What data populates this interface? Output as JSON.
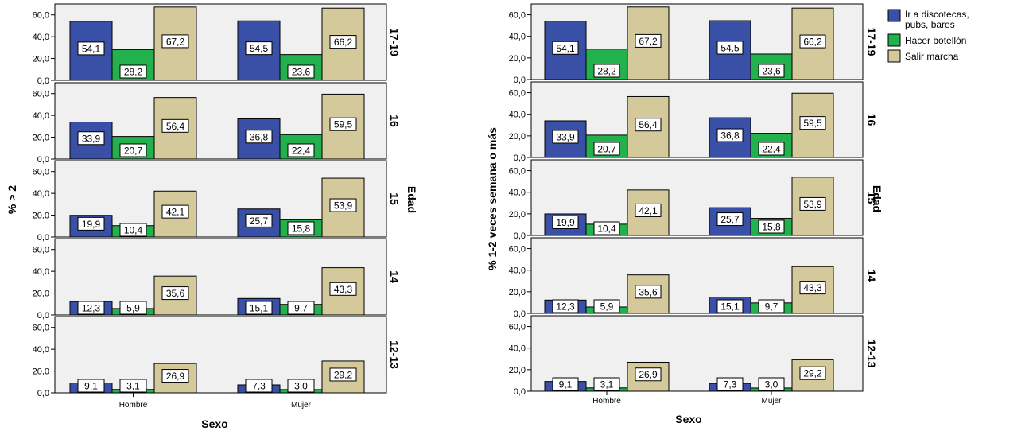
{
  "chart_data": [
    {
      "type": "bar",
      "xlabel": "Sexo",
      "ylabel": "% > 2",
      "facet_label": "Edad",
      "categories": [
        "Hombre",
        "Mujer"
      ],
      "ylim": [
        0,
        70
      ],
      "yticks": [
        "0,0",
        "20,0",
        "40,0",
        "60,0"
      ],
      "grid": false,
      "panels": [
        {
          "label": "17-19",
          "series": [
            {
              "name": "Ir a discotecas, pubs, bares",
              "values": [
                54.1,
                54.5
              ],
              "labels": [
                "54,1",
                "54,5"
              ]
            },
            {
              "name": "Hacer botellón",
              "values": [
                28.2,
                23.6
              ],
              "labels": [
                "28,2",
                "23,6"
              ]
            },
            {
              "name": "Salir marcha",
              "values": [
                67.2,
                66.2
              ],
              "labels": [
                "67,2",
                "66,2"
              ]
            }
          ]
        },
        {
          "label": "16",
          "series": [
            {
              "name": "Ir a discotecas, pubs, bares",
              "values": [
                33.9,
                36.8
              ],
              "labels": [
                "33,9",
                "36,8"
              ]
            },
            {
              "name": "Hacer botellón",
              "values": [
                20.7,
                22.4
              ],
              "labels": [
                "20,7",
                "22,4"
              ]
            },
            {
              "name": "Salir marcha",
              "values": [
                56.4,
                59.5
              ],
              "labels": [
                "56,4",
                "59,5"
              ]
            }
          ]
        },
        {
          "label": "15",
          "series": [
            {
              "name": "Ir a discotecas, pubs, bares",
              "values": [
                19.9,
                25.7
              ],
              "labels": [
                "19,9",
                "25,7"
              ]
            },
            {
              "name": "Hacer botellón",
              "values": [
                10.4,
                15.8
              ],
              "labels": [
                "10,4",
                "15,8"
              ]
            },
            {
              "name": "Salir marcha",
              "values": [
                42.1,
                53.9
              ],
              "labels": [
                "42,1",
                "53,9"
              ]
            }
          ]
        },
        {
          "label": "14",
          "series": [
            {
              "name": "Ir a discotecas, pubs, bares",
              "values": [
                12.3,
                15.1
              ],
              "labels": [
                "12,3",
                "15,1"
              ]
            },
            {
              "name": "Hacer botellón",
              "values": [
                5.9,
                9.7
              ],
              "labels": [
                "5,9",
                "9,7"
              ]
            },
            {
              "name": "Salir marcha",
              "values": [
                35.6,
                43.3
              ],
              "labels": [
                "35,6",
                "43,3"
              ]
            }
          ]
        },
        {
          "label": "12-13",
          "series": [
            {
              "name": "Ir a discotecas, pubs, bares",
              "values": [
                9.1,
                7.3
              ],
              "labels": [
                "9,1",
                "7,3"
              ]
            },
            {
              "name": "Hacer botellón",
              "values": [
                3.1,
                3.0
              ],
              "labels": [
                "3,1",
                "3,0"
              ]
            },
            {
              "name": "Salir marcha",
              "values": [
                26.9,
                29.2
              ],
              "labels": [
                "26,9",
                "29,2"
              ]
            }
          ]
        }
      ]
    },
    {
      "type": "bar",
      "xlabel": "Sexo",
      "ylabel": "% 1-2 veces semana o más",
      "facet_label": "Edad",
      "categories": [
        "Hombre",
        "Mujer"
      ],
      "ylim": [
        0,
        70
      ],
      "yticks": [
        "0,0",
        "20,0",
        "40,0",
        "60,0"
      ],
      "grid": false,
      "legend": {
        "position": "top-right",
        "entries": [
          "Ir a discotecas, pubs, bares",
          "Hacer botellón",
          "Salir marcha"
        ]
      },
      "panels": [
        {
          "label": "17-19",
          "series": [
            {
              "name": "Ir a discotecas, pubs, bares",
              "values": [
                54.1,
                54.5
              ],
              "labels": [
                "54,1",
                "54,5"
              ]
            },
            {
              "name": "Hacer botellón",
              "values": [
                28.2,
                23.6
              ],
              "labels": [
                "28,2",
                "23,6"
              ]
            },
            {
              "name": "Salir marcha",
              "values": [
                67.2,
                66.2
              ],
              "labels": [
                "67,2",
                "66,2"
              ]
            }
          ]
        },
        {
          "label": "16",
          "series": [
            {
              "name": "Ir a discotecas, pubs, bares",
              "values": [
                33.9,
                36.8
              ],
              "labels": [
                "33,9",
                "36,8"
              ]
            },
            {
              "name": "Hacer botellón",
              "values": [
                20.7,
                22.4
              ],
              "labels": [
                "20,7",
                "22,4"
              ]
            },
            {
              "name": "Salir marcha",
              "values": [
                56.4,
                59.5
              ],
              "labels": [
                "56,4",
                "59,5"
              ]
            }
          ]
        },
        {
          "label": "15",
          "series": [
            {
              "name": "Ir a discotecas, pubs, bares",
              "values": [
                19.9,
                25.7
              ],
              "labels": [
                "19,9",
                "25,7"
              ]
            },
            {
              "name": "Hacer botellón",
              "values": [
                10.4,
                15.8
              ],
              "labels": [
                "10,4",
                "15,8"
              ]
            },
            {
              "name": "Salir marcha",
              "values": [
                42.1,
                53.9
              ],
              "labels": [
                "42,1",
                "53,9"
              ]
            }
          ]
        },
        {
          "label": "14",
          "series": [
            {
              "name": "Ir a discotecas, pubs, bares",
              "values": [
                12.3,
                15.1
              ],
              "labels": [
                "12,3",
                "15,1"
              ]
            },
            {
              "name": "Hacer botellón",
              "values": [
                5.9,
                9.7
              ],
              "labels": [
                "5,9",
                "9,7"
              ]
            },
            {
              "name": "Salir marcha",
              "values": [
                35.6,
                43.3
              ],
              "labels": [
                "35,6",
                "43,3"
              ]
            }
          ]
        },
        {
          "label": "12-13",
          "series": [
            {
              "name": "Ir a discotecas, pubs, bares",
              "values": [
                9.1,
                7.3
              ],
              "labels": [
                "9,1",
                "7,3"
              ]
            },
            {
              "name": "Hacer botellón",
              "values": [
                3.1,
                3.0
              ],
              "labels": [
                "3,1",
                "3,0"
              ]
            },
            {
              "name": "Salir marcha",
              "values": [
                26.9,
                29.2
              ],
              "labels": [
                "26,9",
                "29,2"
              ]
            }
          ]
        }
      ]
    }
  ],
  "colors": {
    "series": [
      "#3a4fa6",
      "#22b14c",
      "#d4c99a"
    ],
    "panel_bg": "#f0f0f0",
    "label_box": "#ffffff",
    "axis": "#000000"
  }
}
